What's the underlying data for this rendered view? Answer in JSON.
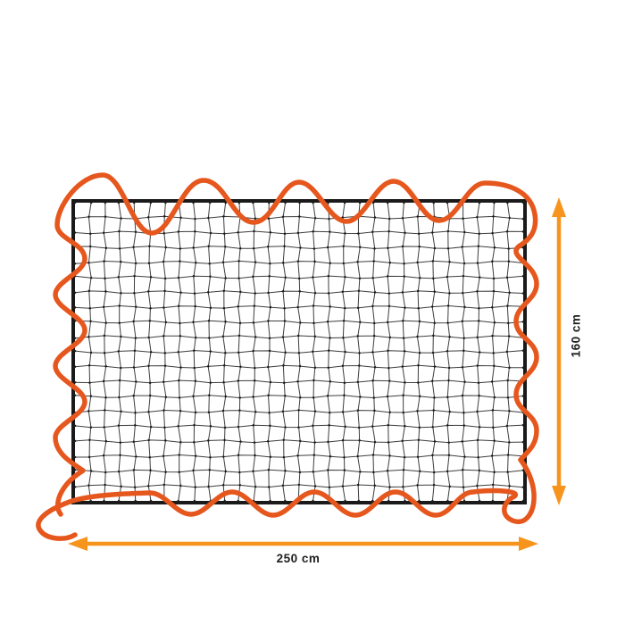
{
  "diagram": {
    "dimensions": {
      "width_label": "250 cm",
      "height_label": "160 cm"
    },
    "colors": {
      "cord": "#E6571E",
      "arrow": "#F7941E",
      "net_border": "#1A1A1A",
      "mesh_line": "#3D3D3D",
      "mesh_knot": "#1C1C1C",
      "label_text": "#1F1F1F",
      "background": "#FFFFFF"
    },
    "net": {
      "columns": 30,
      "rows": 20
    }
  }
}
